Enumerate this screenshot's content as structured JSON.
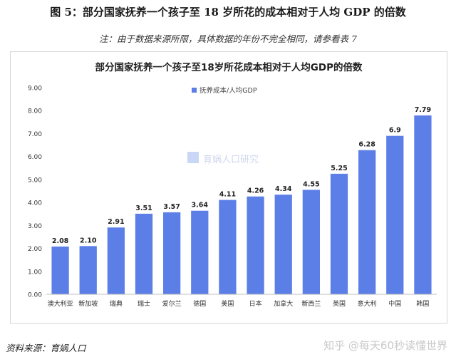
{
  "figure": {
    "title": "图 5：部分国家抚养一个孩子至 18 岁所花的成本相对于人均 GDP 的倍数",
    "note": "注：由于数据来源所限，具体数据的年份不完全相同，请参看表 7",
    "source": "资料来源：育娲人口",
    "credit": "知乎 @每天60秒读懂世界",
    "watermark": "育娲人口研究"
  },
  "chart_data": {
    "type": "bar",
    "title": "部分国家抚养一个孩子至18岁所花成本相对于人均GDP的倍数",
    "categories": [
      "澳大利亚",
      "新加坡",
      "瑞典",
      "瑞士",
      "爱尔兰",
      "德国",
      "美国",
      "日本",
      "加拿大",
      "新西兰",
      "英国",
      "意大利",
      "中国",
      "韩国"
    ],
    "series": [
      {
        "name": "抚养成本/人均GDP",
        "values": [
          2.08,
          2.1,
          2.91,
          3.51,
          3.57,
          3.64,
          4.11,
          4.26,
          4.34,
          4.55,
          5.25,
          6.28,
          6.9,
          7.79
        ]
      }
    ],
    "data_labels": [
      "2.08",
      "2.10",
      "2.91",
      "3.51",
      "3.57",
      "3.64",
      "4.11",
      "4.26",
      "4.34",
      "4.55",
      "5.25",
      "6.28",
      "6.9",
      "7.79"
    ],
    "ylim": [
      0,
      9
    ],
    "ytick_labels": [
      "0.00",
      "1.00",
      "2.00",
      "3.00",
      "4.00",
      "5.00",
      "6.00",
      "7.00",
      "8.00",
      "9.00"
    ],
    "xlabel": "",
    "ylabel": "",
    "grid": false,
    "legend_position": "top-left",
    "colors": {
      "bar": "#5b7fe6",
      "axis": "#bfbfbf",
      "text": "#333333"
    }
  }
}
